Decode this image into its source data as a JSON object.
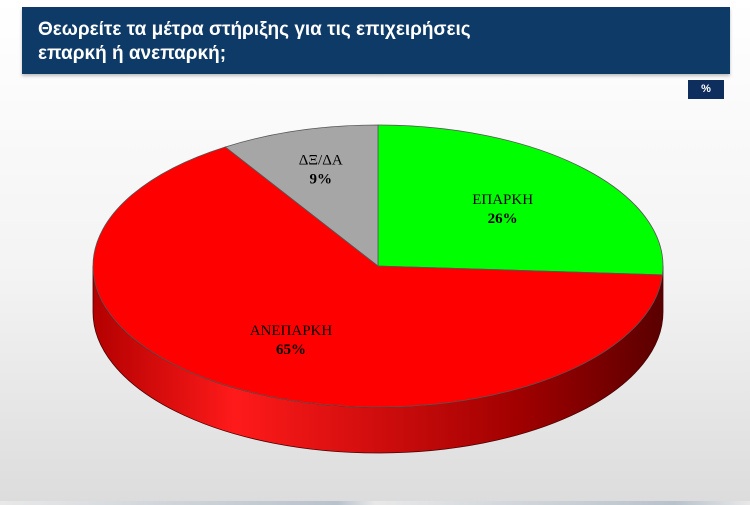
{
  "header": {
    "title": "Θεωρείτε τα μέτρα στήριξης για τις επιχειρήσεις\nεπαρκή ή  ανεπαρκή;",
    "unit_badge": "%"
  },
  "colors": {
    "header_bg": "#0e3a67",
    "badge_bg": "#0e2f5e"
  },
  "chart_data": {
    "type": "pie",
    "style": "3d",
    "title": "Θεωρείτε τα μέτρα στήριξης για τις επιχειρήσεις επαρκή ή  ανεπαρκή;",
    "unit": "%",
    "slices": [
      {
        "label": "ΕΠΑΡΚΗ",
        "value": 26,
        "value_label": "26%",
        "color": "#00ff00"
      },
      {
        "label": "ΑΝΕΠΑΡΚΗ",
        "value": 65,
        "value_label": "65%",
        "color": "#ff0000"
      },
      {
        "label": "ΔΞ/ΔΑ",
        "value": 9,
        "value_label": "9%",
        "color": "#a6a6a6"
      }
    ]
  }
}
